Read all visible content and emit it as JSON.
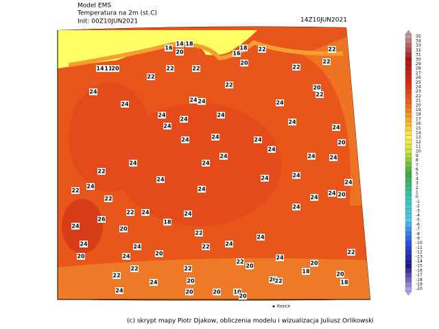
{
  "header": {
    "model": "Model EMS",
    "field": "Temperatura na 2m (st.C)",
    "init": "Init: 00Z10JUN2021",
    "valid": "14Z10JUN2021"
  },
  "colorbar": {
    "levels": [
      35,
      34,
      33,
      32,
      31,
      30,
      29,
      28,
      27,
      26,
      25,
      24,
      23,
      22,
      21,
      20,
      19,
      18,
      17,
      16,
      15,
      14,
      13,
      12,
      11,
      10,
      9,
      8,
      7,
      6,
      5,
      4,
      3,
      2,
      1,
      0,
      -1,
      -2,
      -3,
      -4,
      -5,
      -6,
      -7,
      -8,
      -9,
      -10,
      -11,
      -12,
      -13,
      -14,
      -15,
      -16,
      -17,
      -18,
      -19,
      -20
    ]
  },
  "map": {
    "labels": [
      14,
      18,
      16,
      20,
      18,
      16,
      22,
      22,
      14,
      11,
      20,
      22,
      22,
      20,
      22,
      22,
      22,
      24,
      22,
      20,
      22,
      24,
      24,
      24,
      24,
      24,
      24,
      24,
      24,
      24,
      24,
      24,
      24,
      24,
      20,
      24,
      24,
      24,
      24,
      24,
      24,
      22,
      24,
      24,
      24,
      24,
      22,
      24,
      24,
      24,
      24,
      20,
      22,
      24,
      24,
      22,
      24,
      24,
      26,
      20,
      18,
      24,
      22,
      24,
      24,
      20,
      22,
      20,
      24,
      24,
      22,
      24,
      22,
      22,
      22,
      20,
      20,
      18,
      22,
      20,
      24,
      20,
      20,
      22,
      18,
      24,
      20,
      20,
      10,
      20
    ],
    "city": "Kosice"
  },
  "footer": {
    "credit": "(c) skrypt mapy Piotr Djakow, obliczenia modelu i wizualizacja Juliusz Orlikowski"
  }
}
